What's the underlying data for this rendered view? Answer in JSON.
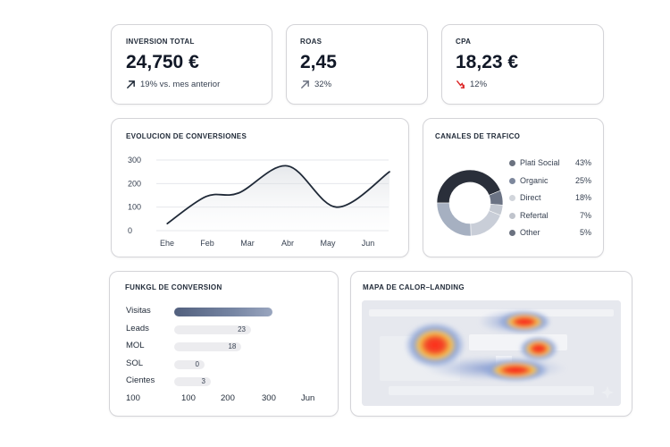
{
  "kpis": [
    {
      "title": "INVERSION TOTAL",
      "value": "24,750 €",
      "delta": "19% vs. mes anterior",
      "arrow_color": "#1f2937"
    },
    {
      "title": "ROAS",
      "value": "2,45",
      "delta": "32%",
      "arrow_color": "#6b7280"
    },
    {
      "title": "CPA",
      "value": "18,23 €",
      "delta": "12%",
      "arrow_color": "#dc2626"
    }
  ],
  "conversions": {
    "title": "EVOLUCION DE CONVERSIONES",
    "chart_data": {
      "type": "line",
      "title": "EVOLUCION DE CONVERSIONES",
      "categories": [
        "Ehe",
        "Feb",
        "Mar",
        "Abr",
        "May",
        "Jun"
      ],
      "x": [
        0.05,
        1,
        1.8,
        3,
        4.2,
        5.5
      ],
      "values": [
        30,
        145,
        160,
        275,
        100,
        250
      ],
      "y_ticks": [
        0,
        100,
        200,
        300
      ],
      "ylim": [
        0,
        300
      ],
      "grid": true,
      "line_color": "#1f2937"
    }
  },
  "traffic": {
    "title": "CANALES DE TRAFICO",
    "chart_data": {
      "type": "pie",
      "donut": true,
      "labels": [
        "Plati Social",
        "Organic",
        "Direct",
        "Refertal",
        "Other"
      ],
      "values": [
        43,
        25,
        18,
        7,
        5
      ],
      "value_labels": [
        "43%",
        "25%",
        "18%",
        "7%",
        "5%"
      ],
      "legend_placement": "right",
      "colors": [
        "#2a2f3a",
        "#a6b0c1",
        "#c9ced8",
        "#6b7384",
        "#c4c9d2"
      ],
      "legend_colors": [
        "#6b7280",
        "#7d879c",
        "#d1d5db",
        "#c0c4cc",
        "#6b7280"
      ]
    }
  },
  "funnel": {
    "title": "FUNKGL DE CONVERSION",
    "chart_data": {
      "type": "bar",
      "orientation": "horizontal",
      "categories": [
        "Visitas",
        "Leads",
        "MOL",
        "SOL",
        "Cientes"
      ],
      "values": [
        300,
        23,
        18,
        0,
        3
      ],
      "value_labels": [
        "",
        "23",
        "18",
        "0",
        "3"
      ],
      "x_ticks": [
        "100",
        "100",
        "200",
        "300",
        "Jun"
      ]
    }
  },
  "heatmap": {
    "title": "MAPA DE CALOR–LANDING"
  }
}
